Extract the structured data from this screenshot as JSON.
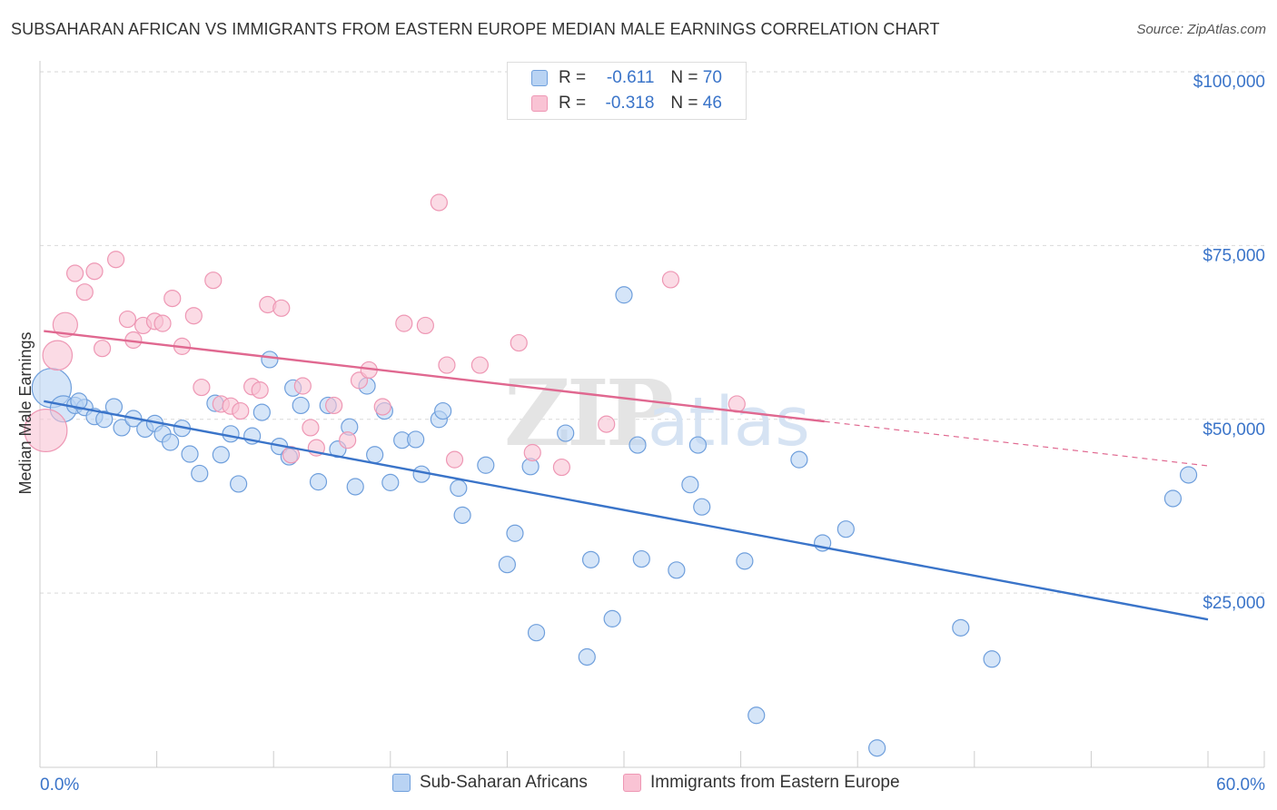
{
  "title": "SUBSAHARAN AFRICAN VS IMMIGRANTS FROM EASTERN EUROPE MEDIAN MALE EARNINGS CORRELATION CHART",
  "source": "Source: ZipAtlas.com",
  "watermark": {
    "zip": "ZIP",
    "atlas": "atlas"
  },
  "colors": {
    "blue": "#3a74c9",
    "blue_fill": "#b9d3f3",
    "blue_stroke": "#6f9fdc",
    "pink": "#e06890",
    "pink_fill": "#f9c3d4",
    "pink_stroke": "#ee97b4",
    "grid": "#d9d9d9",
    "axis_label": "#3a74c9"
  },
  "legend": {
    "blue": {
      "r_label": "R =",
      "r_value": "-0.611",
      "n_label": "N =",
      "n_value": "70"
    },
    "pink": {
      "r_label": "R =",
      "r_value": "-0.318",
      "n_label": "N =",
      "n_value": "46"
    }
  },
  "bottom_legend": {
    "blue_label": "Sub-Saharan Africans",
    "pink_label": "Immigrants from Eastern Europe"
  },
  "chart_data": {
    "type": "scatter",
    "title": "SUBSAHARAN AFRICAN VS IMMIGRANTS FROM EASTERN EUROPE MEDIAN MALE EARNINGS CORRELATION CHART",
    "xlabel": "",
    "ylabel": "Median Male Earnings",
    "xlim": [
      0,
      60
    ],
    "ylim": [
      0,
      105000
    ],
    "x_tick_labels": {
      "min": "0.0%",
      "max": "60.0%"
    },
    "y_ticks": [
      {
        "value": 25000,
        "label": "$25,000"
      },
      {
        "value": 50000,
        "label": "$50,000"
      },
      {
        "value": 75000,
        "label": "$75,000"
      },
      {
        "value": 100000,
        "label": "$100,000"
      }
    ],
    "grid": true,
    "series": [
      {
        "name": "Sub-Saharan Africans",
        "color": "blue",
        "r": -0.611,
        "n": 70,
        "trend": {
          "x0": 0.2,
          "y0": 52600,
          "x1": 60,
          "y1": 21200,
          "solid_until": 60
        },
        "points": [
          [
            0.6,
            54500,
            2.4
          ],
          [
            1.2,
            51500,
            1.6
          ],
          [
            1.8,
            52000,
            1
          ],
          [
            2.3,
            51700,
            1
          ],
          [
            2.8,
            50400,
            1
          ],
          [
            3.3,
            50000,
            1
          ],
          [
            3.8,
            51800,
            1
          ],
          [
            4.2,
            48800,
            1
          ],
          [
            4.8,
            50100,
            1
          ],
          [
            5.4,
            48600,
            1
          ],
          [
            5.9,
            49400,
            1
          ],
          [
            6.3,
            47900,
            1
          ],
          [
            6.7,
            46700,
            1
          ],
          [
            7.3,
            48700,
            1
          ],
          [
            7.7,
            45000,
            1
          ],
          [
            8.2,
            42200,
            1
          ],
          [
            9.0,
            52300,
            1
          ],
          [
            9.3,
            44900,
            1
          ],
          [
            9.8,
            47900,
            1
          ],
          [
            10.2,
            40700,
            1
          ],
          [
            10.9,
            47600,
            1
          ],
          [
            11.4,
            51000,
            1
          ],
          [
            11.8,
            58600,
            1
          ],
          [
            12.3,
            46100,
            1
          ],
          [
            12.8,
            44600,
            1
          ],
          [
            13.0,
            54500,
            1
          ],
          [
            13.4,
            52000,
            1
          ],
          [
            14.3,
            41000,
            1
          ],
          [
            14.8,
            52000,
            1
          ],
          [
            15.3,
            45700,
            1
          ],
          [
            15.9,
            48900,
            1
          ],
          [
            16.2,
            40300,
            1
          ],
          [
            16.8,
            54800,
            1
          ],
          [
            17.2,
            44900,
            1
          ],
          [
            17.7,
            51200,
            1
          ],
          [
            18.0,
            40900,
            1
          ],
          [
            18.6,
            47000,
            1
          ],
          [
            19.3,
            47100,
            1
          ],
          [
            19.6,
            42100,
            1
          ],
          [
            20.5,
            50000,
            1
          ],
          [
            20.7,
            51200,
            1
          ],
          [
            21.5,
            40100,
            1
          ],
          [
            21.7,
            36200,
            1
          ],
          [
            22.9,
            43400,
            1
          ],
          [
            24.0,
            29100,
            1
          ],
          [
            24.4,
            33600,
            1
          ],
          [
            25.2,
            43200,
            1
          ],
          [
            25.5,
            19300,
            1
          ],
          [
            27.0,
            48000,
            1
          ],
          [
            28.1,
            15800,
            1
          ],
          [
            28.3,
            29800,
            1
          ],
          [
            29.4,
            21300,
            1
          ],
          [
            30.0,
            67900,
            1
          ],
          [
            30.9,
            29900,
            1
          ],
          [
            30.7,
            46300,
            1
          ],
          [
            32.7,
            28300,
            1
          ],
          [
            33.4,
            40600,
            1
          ],
          [
            33.8,
            46300,
            1
          ],
          [
            34.0,
            37400,
            1
          ],
          [
            36.2,
            29600,
            1
          ],
          [
            36.8,
            7400,
            1
          ],
          [
            39.0,
            44200,
            1
          ],
          [
            40.2,
            32200,
            1
          ],
          [
            41.4,
            34200,
            1
          ],
          [
            43.0,
            2700,
            1
          ],
          [
            47.3,
            20000,
            1
          ],
          [
            48.9,
            15500,
            1
          ],
          [
            58.2,
            38600,
            1
          ],
          [
            59.0,
            42000,
            1
          ],
          [
            2.0,
            52600,
            1
          ]
        ]
      },
      {
        "name": "Immigrants from Eastern Europe",
        "color": "pink",
        "r": -0.318,
        "n": 46,
        "trend": {
          "x0": 0.2,
          "y0": 62700,
          "x1": 60,
          "y1": 43300,
          "solid_until": 40.3
        },
        "points": [
          [
            0.3,
            48400,
            2.6
          ],
          [
            0.9,
            59200,
            1.8
          ],
          [
            1.3,
            63600,
            1.5
          ],
          [
            1.8,
            71000,
            1
          ],
          [
            2.3,
            68300,
            1
          ],
          [
            2.8,
            71300,
            1
          ],
          [
            3.2,
            60200,
            1
          ],
          [
            3.9,
            73000,
            1
          ],
          [
            4.5,
            64400,
            1
          ],
          [
            4.8,
            61400,
            1
          ],
          [
            5.3,
            63500,
            1
          ],
          [
            5.9,
            64100,
            1
          ],
          [
            6.3,
            63800,
            1
          ],
          [
            6.8,
            67400,
            1
          ],
          [
            7.3,
            60500,
            1
          ],
          [
            7.9,
            64900,
            1
          ],
          [
            8.3,
            54600,
            1
          ],
          [
            8.9,
            70000,
            1
          ],
          [
            9.3,
            52200,
            1
          ],
          [
            9.8,
            51900,
            1
          ],
          [
            10.3,
            51200,
            1
          ],
          [
            10.9,
            54700,
            1
          ],
          [
            11.3,
            54200,
            1
          ],
          [
            11.7,
            66500,
            1
          ],
          [
            12.4,
            66000,
            1
          ],
          [
            12.9,
            44900,
            1
          ],
          [
            13.5,
            54800,
            1
          ],
          [
            13.9,
            48800,
            1
          ],
          [
            14.2,
            45900,
            1
          ],
          [
            15.1,
            52000,
            1
          ],
          [
            15.8,
            47000,
            1
          ],
          [
            16.4,
            55600,
            1
          ],
          [
            16.9,
            57100,
            1
          ],
          [
            17.6,
            51800,
            1
          ],
          [
            18.7,
            63800,
            1
          ],
          [
            19.8,
            63500,
            1
          ],
          [
            20.5,
            81200,
            1
          ],
          [
            20.9,
            57800,
            1
          ],
          [
            21.3,
            44200,
            1
          ],
          [
            22.6,
            57800,
            1
          ],
          [
            24.6,
            61000,
            1
          ],
          [
            25.3,
            45200,
            1
          ],
          [
            26.8,
            43100,
            1
          ],
          [
            29.1,
            49300,
            1
          ],
          [
            32.4,
            70100,
            1
          ],
          [
            35.8,
            52200,
            1
          ]
        ]
      }
    ]
  }
}
